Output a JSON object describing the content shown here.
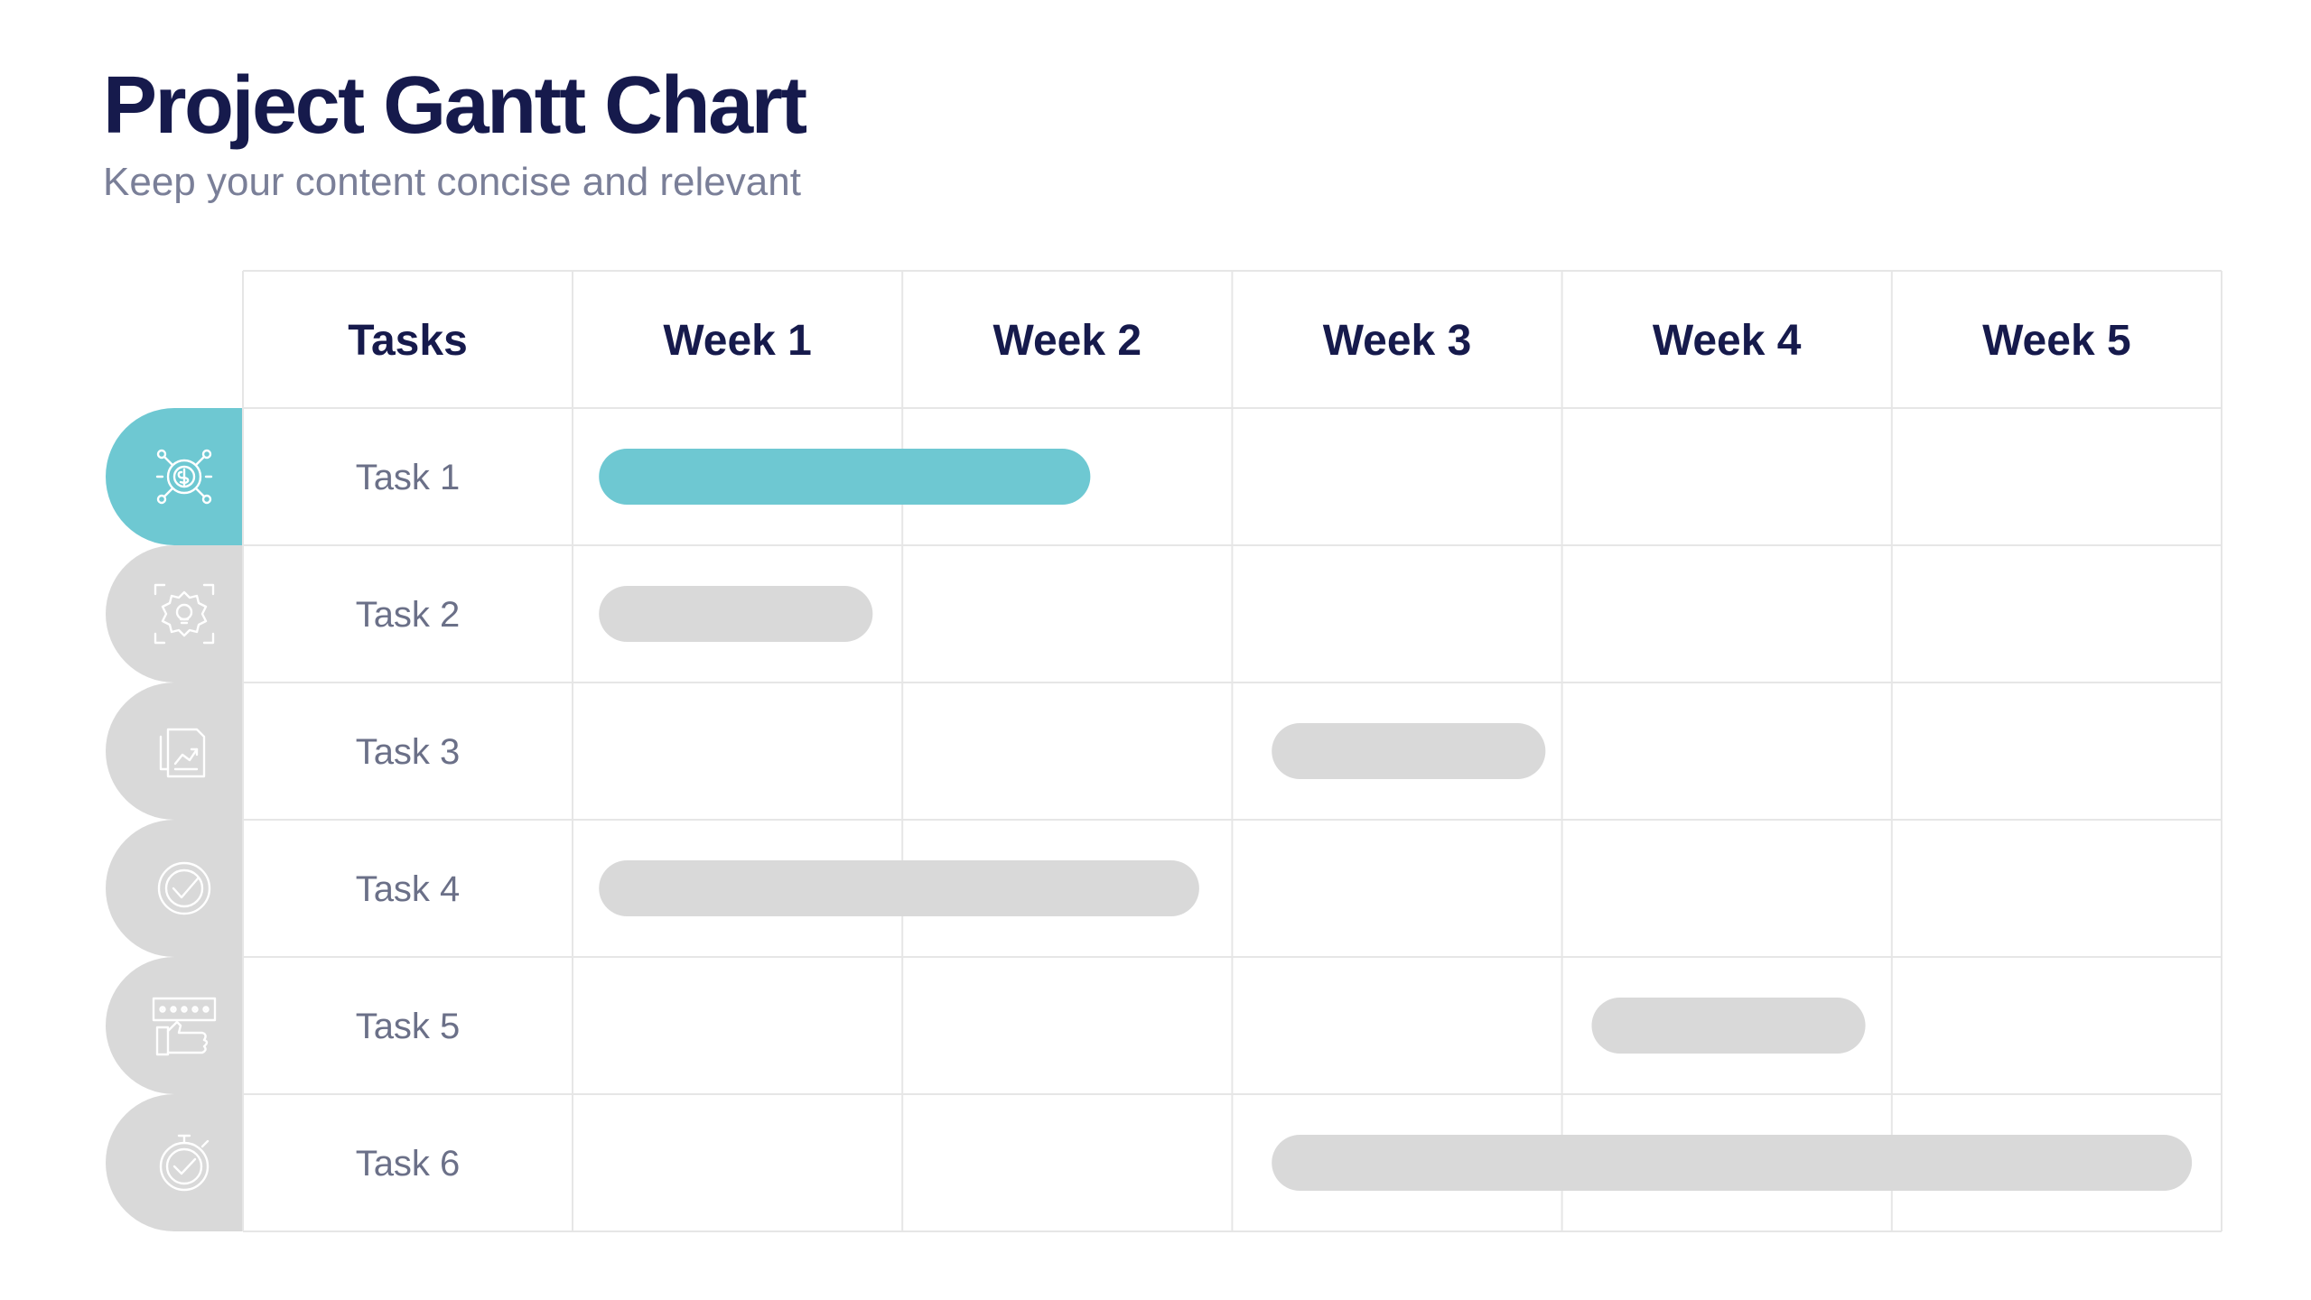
{
  "header": {
    "title": "Project Gantt Chart",
    "subtitle": "Keep your content concise and relevant"
  },
  "colors": {
    "accent": "#6ec8d2",
    "inactive": "#d9d9d9",
    "grid": "#e6e6e6",
    "title": "#161a4c",
    "text": "#6b7088"
  },
  "chart_data": {
    "type": "gantt",
    "columns_header": "Tasks",
    "weeks": [
      "Week 1",
      "Week 2",
      "Week 3",
      "Week 4",
      "Week 5"
    ],
    "tasks": [
      {
        "label": "Task 1",
        "icon": "dollar-gear-icon",
        "start_week": 0.08,
        "end_week": 1.57,
        "highlighted": true
      },
      {
        "label": "Task 2",
        "icon": "lightbulb-gear-icon",
        "start_week": 0.08,
        "end_week": 0.91,
        "highlighted": false
      },
      {
        "label": "Task 3",
        "icon": "document-chart-icon",
        "start_week": 2.12,
        "end_week": 2.95,
        "highlighted": false
      },
      {
        "label": "Task 4",
        "icon": "check-circle-icon",
        "start_week": 0.08,
        "end_week": 1.9,
        "highlighted": false
      },
      {
        "label": "Task 5",
        "icon": "thumbs-up-rating-icon",
        "start_week": 3.09,
        "end_week": 3.92,
        "highlighted": false
      },
      {
        "label": "Task 6",
        "icon": "stopwatch-check-icon",
        "start_week": 2.12,
        "end_week": 4.91,
        "highlighted": false
      }
    ]
  }
}
